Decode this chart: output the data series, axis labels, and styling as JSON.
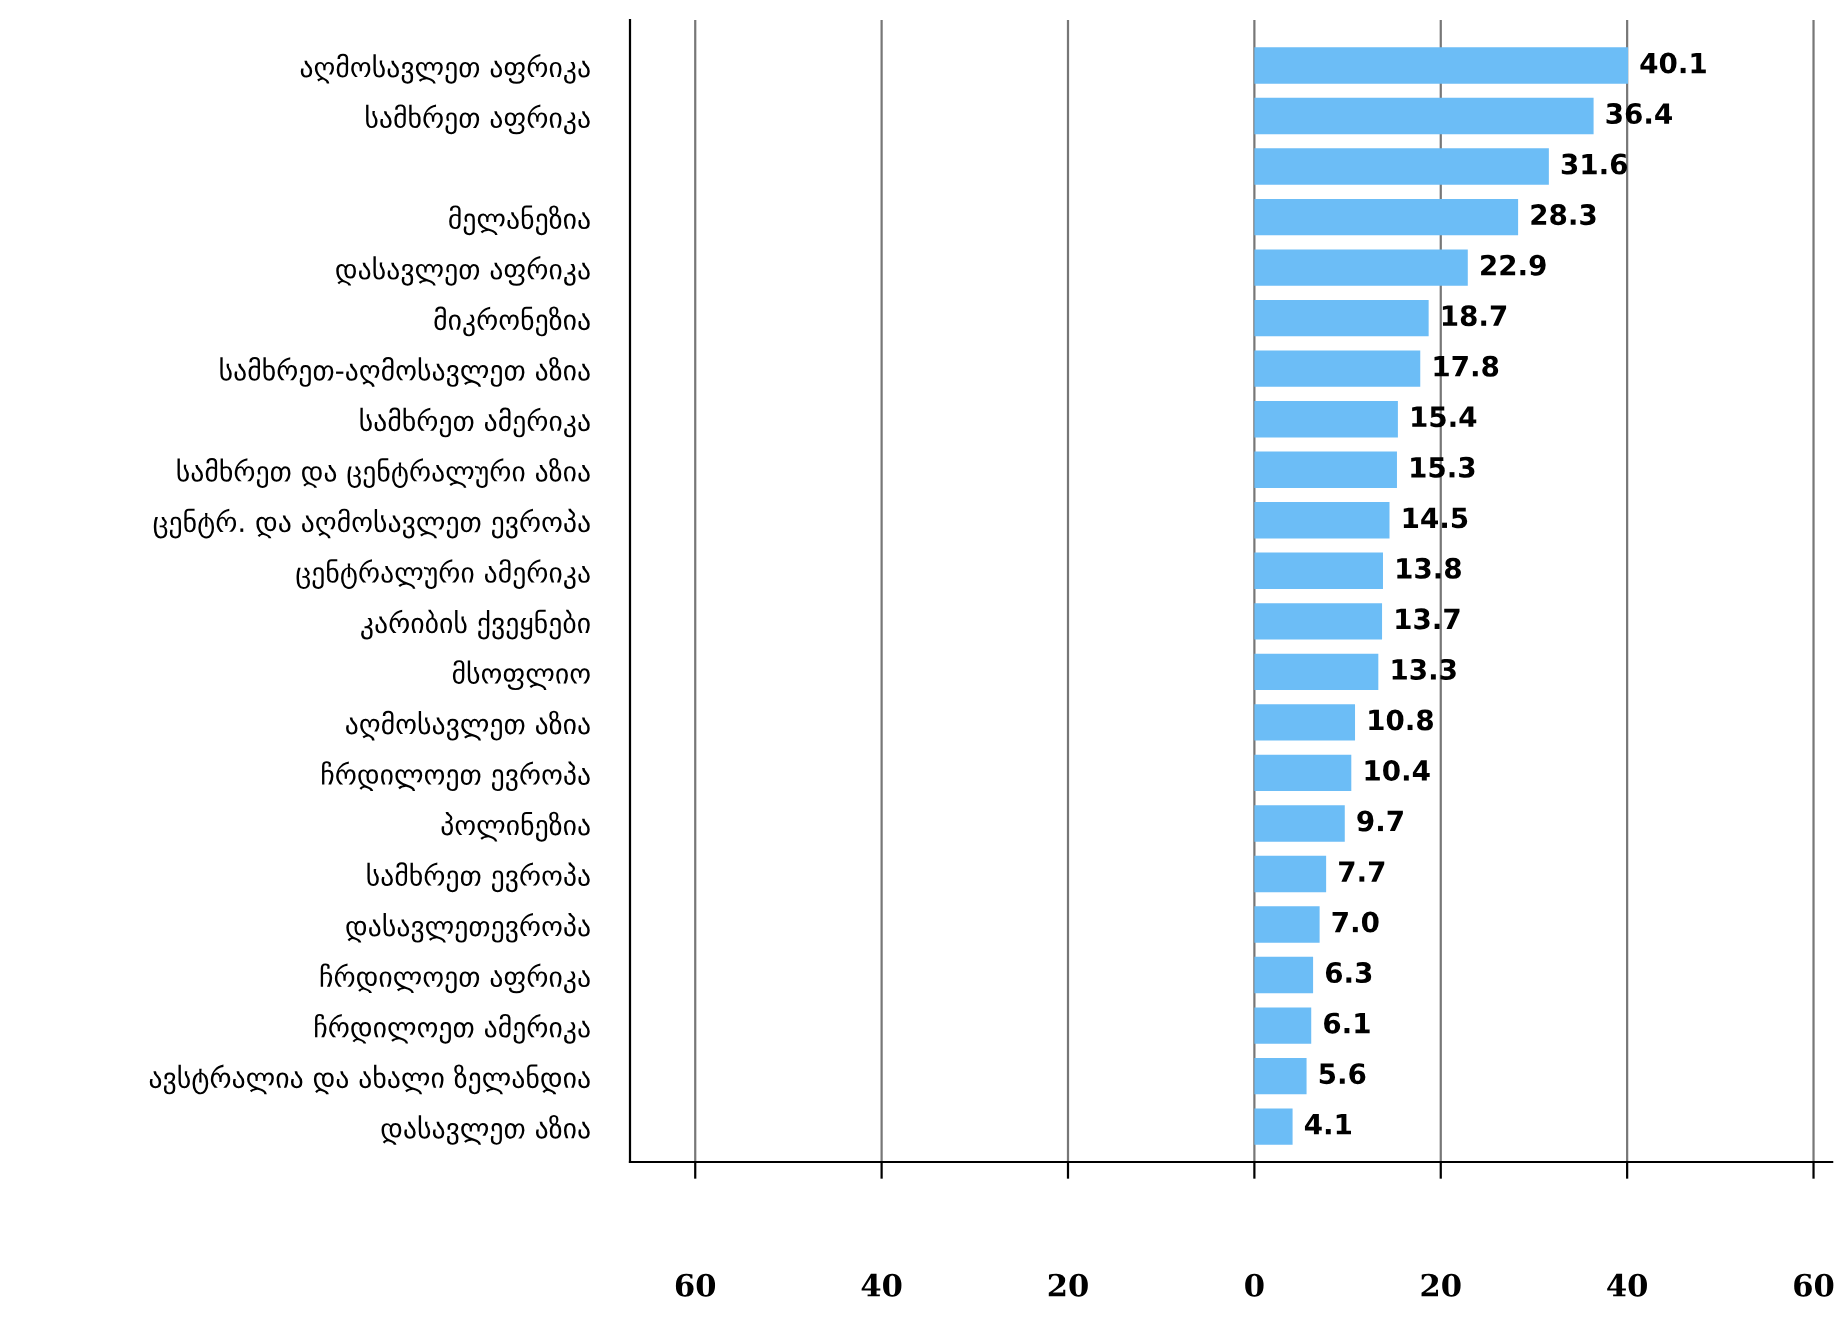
{
  "chart_data": {
    "type": "bar",
    "orientation": "horizontal",
    "categories": [
      "აღმოსავლეთ აფრიკა",
      "სამხრეთ აფრიკა",
      null,
      "მელანეზია",
      "დასავლეთ აფრიკა",
      "მიკრონეზია",
      "სამხრეთ-აღმოსავლეთ აზია",
      "სამხრეთ ამერიკა",
      "სამხრეთ და ცენტრალური აზია",
      "ცენტრ. და აღმოსავლეთ ევროპა",
      "ცენტრალური ამერიკა",
      "კარიბის ქვეყნები",
      "მსოფლიო",
      "აღმოსავლეთ აზია",
      "ჩრდილოეთ ევროპა",
      "პოლინეზია",
      "სამხრეთ ევროპა",
      "დასავლეთევროპა",
      "ჩრდილოეთ აფრიკა",
      "ჩრდილოეთ ამერიკა",
      "ავსტრალია და ახალი ზელანდია",
      "დასავლეთ აზია"
    ],
    "values": [
      40.1,
      36.4,
      31.6,
      28.3,
      22.9,
      18.7,
      17.8,
      15.4,
      15.3,
      14.5,
      13.8,
      13.7,
      13.3,
      10.8,
      10.4,
      9.7,
      7.7,
      7.0,
      6.3,
      6.1,
      5.6,
      4.1
    ],
    "value_labels": [
      "40.1",
      "36.4",
      "31.6",
      "28.3",
      "22.9",
      "18.7",
      "17.8",
      "15.4",
      "15.3",
      "14.5",
      "13.8",
      "13.7",
      "13.3",
      "10.8",
      "10.4",
      "9.7",
      "7.7",
      "7.0",
      "6.3",
      "6.1",
      "5.6",
      "4.1"
    ],
    "color": "#6cbdf6",
    "grid": "x",
    "xlim": [
      -67,
      62
    ],
    "xticks": [
      {
        "value": -60,
        "label": "60"
      },
      {
        "value": -40,
        "label": "40"
      },
      {
        "value": -20,
        "label": "20"
      },
      0,
      20,
      40,
      60
    ]
  }
}
